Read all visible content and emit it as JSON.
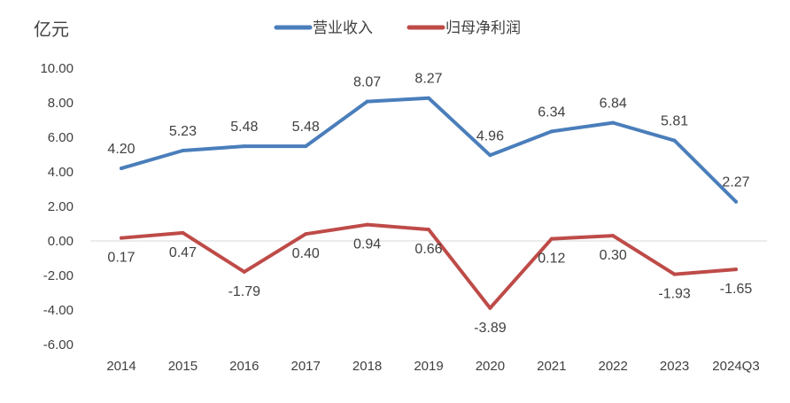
{
  "chart_data": {
    "type": "line",
    "unit_label": "亿元",
    "categories": [
      "2014",
      "2015",
      "2016",
      "2017",
      "2018",
      "2019",
      "2020",
      "2021",
      "2022",
      "2023",
      "2024Q3"
    ],
    "series": [
      {
        "name": "营业收入",
        "color": "#4A7EBB",
        "values": [
          4.2,
          5.23,
          5.48,
          5.48,
          8.07,
          8.27,
          4.96,
          6.34,
          6.84,
          5.81,
          2.27
        ],
        "labels": [
          "4.20",
          "5.23",
          "5.48",
          "5.48",
          "8.07",
          "8.27",
          "4.96",
          "6.34",
          "6.84",
          "5.81",
          "2.27"
        ],
        "label_position": "above"
      },
      {
        "name": "归母净利润",
        "color": "#BE4B48",
        "values": [
          0.17,
          0.47,
          -1.79,
          0.4,
          0.94,
          0.66,
          -3.89,
          0.12,
          0.3,
          -1.93,
          -1.65
        ],
        "labels": [
          "0.17",
          "0.47",
          "-1.79",
          "0.40",
          "0.94",
          "0.66",
          "-3.89",
          "0.12",
          "0.30",
          "-1.93",
          "-1.65"
        ],
        "label_position": "below"
      }
    ],
    "ylim": [
      -6,
      10
    ],
    "yticks": [
      "10.00",
      "8.00",
      "6.00",
      "4.00",
      "2.00",
      "0.00",
      "-2.00",
      "-4.00",
      "-6.00"
    ],
    "ytick_values": [
      10,
      8,
      6,
      4,
      2,
      0,
      -2,
      -4,
      -6
    ],
    "grid": false,
    "legend_position": "top"
  }
}
